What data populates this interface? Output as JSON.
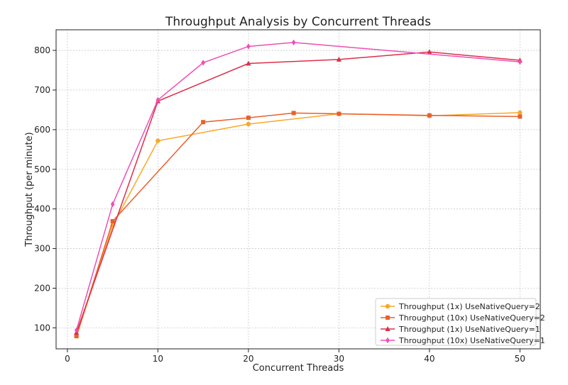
{
  "chart_data": {
    "type": "line",
    "title": "Throughput Analysis by Concurrent Threads",
    "xlabel": "Concurrent Threads",
    "ylabel": "Throughput (per minute)",
    "xlim": [
      -1.25,
      52.25
    ],
    "ylim": [
      47,
      852
    ],
    "xticks": [
      0,
      10,
      20,
      30,
      40,
      50
    ],
    "yticks": [
      100,
      200,
      300,
      400,
      500,
      600,
      700,
      800
    ],
    "grid": true,
    "legend_position": "lower-right",
    "series": [
      {
        "name": "Throughput (1x) UseNativeQuery=2",
        "color": "#F9A825",
        "marker": "circle",
        "x": [
          1,
          5,
          10,
          20,
          30,
          40,
          50
        ],
        "y": [
          79,
          358,
          572,
          614,
          640,
          635,
          643
        ]
      },
      {
        "name": "Throughput (10x) UseNativeQuery=2",
        "color": "#E8612C",
        "marker": "square",
        "x": [
          1,
          5,
          15,
          20,
          25,
          30,
          40,
          50
        ],
        "y": [
          79,
          369,
          619,
          630,
          642,
          640,
          636,
          633
        ]
      },
      {
        "name": "Throughput (1x) UseNativeQuery=1",
        "color": "#DC2F4A",
        "marker": "triangle",
        "x": [
          1,
          10,
          20,
          30,
          40,
          50
        ],
        "y": [
          88,
          672,
          767,
          777,
          796,
          775
        ]
      },
      {
        "name": "Throughput (10x) UseNativeQuery=1",
        "color": "#EE4FB5",
        "marker": "diamond",
        "x": [
          1,
          5,
          10,
          15,
          20,
          25,
          50
        ],
        "y": [
          94,
          412,
          675,
          769,
          810,
          820,
          771
        ]
      }
    ]
  }
}
